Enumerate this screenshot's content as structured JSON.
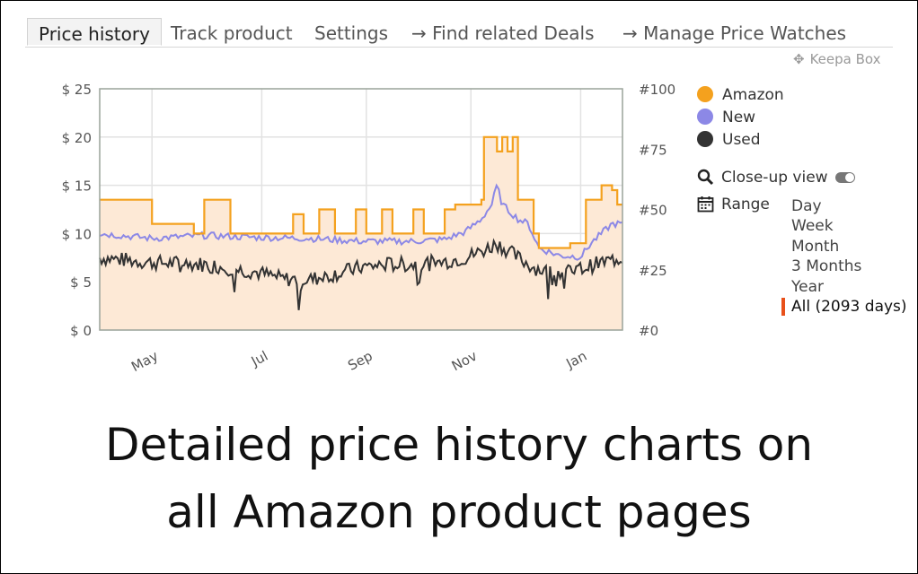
{
  "tabs": [
    {
      "label": "Price history"
    },
    {
      "label": "Track product"
    },
    {
      "label": "Settings"
    },
    {
      "label": "→  Find related Deals"
    },
    {
      "label": "→  Manage Price Watches"
    }
  ],
  "keepa_box": {
    "label": "Keepa Box",
    "icon": "move-icon"
  },
  "legend": [
    {
      "label": "Amazon",
      "color": "#f4a11e"
    },
    {
      "label": "New",
      "color": "#8c88e6"
    },
    {
      "label": "Used",
      "color": "#333333"
    }
  ],
  "closeup": {
    "label": "Close-up view",
    "icon": "search-icon",
    "toggle_on": true
  },
  "range": {
    "label": "Range",
    "icon": "calendar-icon",
    "options": [
      "Day",
      "Week",
      "Month",
      "3 Months",
      "Year",
      "All (2093 days)"
    ],
    "selected": "All (2093 days)"
  },
  "caption": {
    "line1": "Detailed price history charts on",
    "line2": "all Amazon product pages"
  },
  "chart_data": {
    "type": "line",
    "title": "",
    "y_left": {
      "ticks": [
        "$ 0",
        "$ 5",
        "$ 10",
        "$ 15",
        "$ 20",
        "$ 25"
      ],
      "range": [
        0,
        25
      ]
    },
    "y_right": {
      "ticks": [
        "#0",
        "#25",
        "#50",
        "#75",
        "#100"
      ],
      "range": [
        0,
        100
      ]
    },
    "x_ticks": [
      "May",
      "Jul",
      "Sep",
      "Nov",
      "Jan"
    ],
    "x_tick_pos": [
      0.1,
      0.31,
      0.51,
      0.71,
      0.92
    ],
    "grid": true,
    "series": [
      {
        "name": "Amazon",
        "color": "#f4a11e",
        "fill": "#fde9d6",
        "points": [
          [
            0,
            13.5
          ],
          [
            0.1,
            13.5
          ],
          [
            0.1,
            11
          ],
          [
            0.18,
            11
          ],
          [
            0.18,
            10
          ],
          [
            0.2,
            10
          ],
          [
            0.2,
            13.5
          ],
          [
            0.25,
            13.5
          ],
          [
            0.25,
            10
          ],
          [
            0.37,
            10
          ],
          [
            0.37,
            12
          ],
          [
            0.39,
            12
          ],
          [
            0.39,
            10
          ],
          [
            0.42,
            10
          ],
          [
            0.42,
            12.5
          ],
          [
            0.45,
            12.5
          ],
          [
            0.45,
            10
          ],
          [
            0.49,
            10
          ],
          [
            0.49,
            12.5
          ],
          [
            0.51,
            12.5
          ],
          [
            0.51,
            10
          ],
          [
            0.54,
            10
          ],
          [
            0.54,
            12.5
          ],
          [
            0.56,
            12.5
          ],
          [
            0.56,
            10
          ],
          [
            0.6,
            10
          ],
          [
            0.6,
            12.5
          ],
          [
            0.62,
            12.5
          ],
          [
            0.62,
            10
          ],
          [
            0.66,
            10
          ],
          [
            0.66,
            12.5
          ],
          [
            0.68,
            12.5
          ],
          [
            0.68,
            13
          ],
          [
            0.73,
            13
          ],
          [
            0.73,
            13.5
          ],
          [
            0.735,
            13.5
          ],
          [
            0.735,
            20
          ],
          [
            0.76,
            20
          ],
          [
            0.76,
            18.5
          ],
          [
            0.77,
            18.5
          ],
          [
            0.77,
            20
          ],
          [
            0.78,
            20
          ],
          [
            0.78,
            18.5
          ],
          [
            0.79,
            18.5
          ],
          [
            0.79,
            20
          ],
          [
            0.8,
            20
          ],
          [
            0.8,
            13.5
          ],
          [
            0.83,
            13.5
          ],
          [
            0.83,
            10
          ],
          [
            0.84,
            10
          ],
          [
            0.84,
            8.5
          ],
          [
            0.9,
            8.5
          ],
          [
            0.9,
            9
          ],
          [
            0.93,
            9
          ],
          [
            0.93,
            13.5
          ],
          [
            0.96,
            13.5
          ],
          [
            0.96,
            15
          ],
          [
            0.98,
            15
          ],
          [
            0.98,
            14.5
          ],
          [
            0.99,
            14.5
          ],
          [
            0.99,
            13
          ],
          [
            1,
            13
          ]
        ]
      },
      {
        "name": "New",
        "color": "#8c88e6",
        "points": [
          [
            0,
            10
          ],
          [
            0.1,
            9.5
          ],
          [
            0.2,
            9.8
          ],
          [
            0.3,
            9.6
          ],
          [
            0.4,
            9.5
          ],
          [
            0.5,
            9.2
          ],
          [
            0.6,
            9.2
          ],
          [
            0.66,
            9.4
          ],
          [
            0.7,
            10.2
          ],
          [
            0.73,
            11.5
          ],
          [
            0.75,
            13
          ],
          [
            0.76,
            15
          ],
          [
            0.77,
            13
          ],
          [
            0.8,
            11.5
          ],
          [
            0.82,
            11
          ],
          [
            0.84,
            8.5
          ],
          [
            0.88,
            7.7
          ],
          [
            0.92,
            7.6
          ],
          [
            0.94,
            9
          ],
          [
            0.96,
            10
          ],
          [
            0.98,
            11
          ],
          [
            1,
            11
          ]
        ]
      },
      {
        "name": "Used",
        "color": "#333333",
        "points": [
          [
            0,
            7.5
          ],
          [
            0.1,
            7
          ],
          [
            0.2,
            6.8
          ],
          [
            0.3,
            6
          ],
          [
            0.35,
            5.3
          ],
          [
            0.4,
            5.2
          ],
          [
            0.45,
            5.8
          ],
          [
            0.5,
            6.5
          ],
          [
            0.55,
            6.8
          ],
          [
            0.6,
            6.8
          ],
          [
            0.65,
            7
          ],
          [
            0.7,
            7.5
          ],
          [
            0.74,
            8.4
          ],
          [
            0.76,
            9
          ],
          [
            0.8,
            7.5
          ],
          [
            0.83,
            6.5
          ],
          [
            0.86,
            6
          ],
          [
            0.9,
            6
          ],
          [
            0.93,
            6.5
          ],
          [
            0.96,
            7
          ],
          [
            1,
            7.5
          ]
        ]
      }
    ]
  }
}
